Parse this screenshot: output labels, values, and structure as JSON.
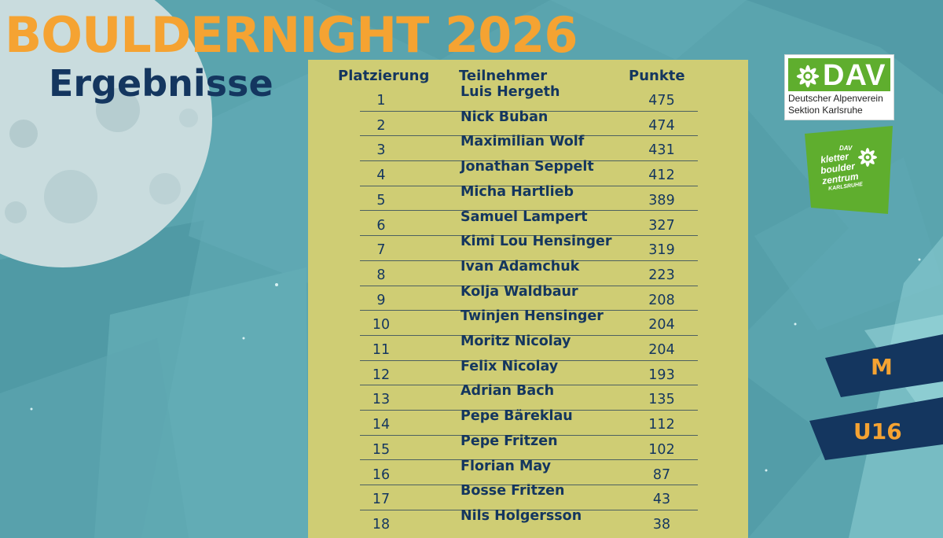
{
  "colors": {
    "background": "#58a3ad",
    "panel": "#cfcd74",
    "title_orange": "#f5a332",
    "navy": "#14365f",
    "dav_green": "#5fae2e",
    "moon": "#c9dcde"
  },
  "title": "BOULDERNIGHT 2026",
  "subtitle": "Ergebnisse",
  "table": {
    "headers": {
      "rank": "Platzierung",
      "name": "Teilnehmer",
      "points": "Punkte"
    },
    "rows": [
      {
        "rank": "1",
        "name": "Luis Hergeth",
        "points": "475"
      },
      {
        "rank": "2",
        "name": "Nick Buban",
        "points": "474"
      },
      {
        "rank": "3",
        "name": "Maximilian Wolf",
        "points": "431"
      },
      {
        "rank": "4",
        "name": "Jonathan Seppelt",
        "points": "412"
      },
      {
        "rank": "5",
        "name": "Micha Hartlieb",
        "points": "389"
      },
      {
        "rank": "6",
        "name": "Samuel Lampert",
        "points": "327"
      },
      {
        "rank": "7",
        "name": "Kimi Lou Hensinger",
        "points": "319"
      },
      {
        "rank": "8",
        "name": "Ivan Adamchuk",
        "points": "223"
      },
      {
        "rank": "9",
        "name": "Kolja Waldbaur",
        "points": "208"
      },
      {
        "rank": "10",
        "name": "Twinjen Hensinger",
        "points": "204"
      },
      {
        "rank": "11",
        "name": "Moritz Nicolay",
        "points": "204"
      },
      {
        "rank": "12",
        "name": "Felix Nicolay",
        "points": "193"
      },
      {
        "rank": "13",
        "name": "Adrian Bach",
        "points": "135"
      },
      {
        "rank": "14",
        "name": "Pepe Bäreklau",
        "points": "112"
      },
      {
        "rank": "15",
        "name": "Pepe Fritzen",
        "points": "102"
      },
      {
        "rank": "16",
        "name": "Florian May",
        "points": "87"
      },
      {
        "rank": "17",
        "name": "Bosse Fritzen",
        "points": "43"
      },
      {
        "rank": "18",
        "name": "Nils Holgersson",
        "points": "38"
      }
    ]
  },
  "logos": {
    "dav": {
      "word": "DAV",
      "line1": "Deutscher Alpenverein",
      "line2": "Sektion Karlsruhe",
      "icon": "edelweiss-icon"
    },
    "kbz": {
      "top": "DAV",
      "line1": "kletter",
      "line2": "boulder",
      "line3": "zentrum",
      "line4": "KARLSRUHE",
      "icon": "edelweiss-icon"
    }
  },
  "tags": {
    "gender": "M",
    "age": "U16"
  }
}
